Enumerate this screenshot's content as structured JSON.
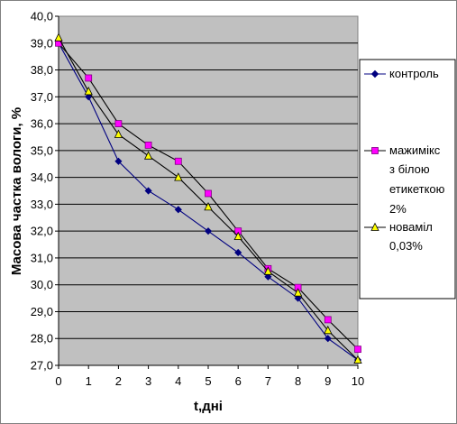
{
  "colors": {
    "plot_bg": "#c0c0c0",
    "frame_bg": "#ffffff",
    "grid": "#000000",
    "control": "#000080",
    "mazhimiks": "#ff00ff",
    "novamil": "#ffff00"
  },
  "chart_data": {
    "type": "line",
    "title": "",
    "xlabel": "t,дні",
    "ylabel": "Масова частка вологи, %",
    "x": [
      0,
      1,
      2,
      3,
      4,
      5,
      6,
      7,
      8,
      9,
      10
    ],
    "x_tick_labels": [
      "0",
      "1",
      "2",
      "3",
      "4",
      "5",
      "6",
      "7",
      "8",
      "9",
      "10"
    ],
    "ylim": [
      27.0,
      40.0
    ],
    "y_tick_labels": [
      "27,0",
      "28,0",
      "29,0",
      "30,0",
      "31,0",
      "32,0",
      "33,0",
      "34,0",
      "35,0",
      "36,0",
      "37,0",
      "38,0",
      "39,0",
      "40,0"
    ],
    "grid": true,
    "legend_position": "right",
    "series": [
      {
        "name": "контроль",
        "marker": "diamond",
        "values": [
          39.0,
          37.0,
          34.6,
          33.5,
          32.8,
          32.0,
          31.2,
          30.3,
          29.5,
          28.0,
          27.2
        ]
      },
      {
        "name": "мажимікс з білою етикеткою 2%",
        "marker": "square",
        "values": [
          39.0,
          37.7,
          36.0,
          35.2,
          34.6,
          33.4,
          32.0,
          30.6,
          29.9,
          28.7,
          27.6
        ]
      },
      {
        "name": "новамiл 0,03%",
        "marker": "triangle",
        "values": [
          39.2,
          37.2,
          35.6,
          34.8,
          34.0,
          32.9,
          31.8,
          30.5,
          29.7,
          28.3,
          27.2
        ]
      }
    ]
  },
  "legend": {
    "control_label": "контроль",
    "mazhimiks_label_lines": [
      "мажимікс",
      "з білою",
      "етикеткою",
      "2%"
    ],
    "novamil_label_lines": [
      "новамiл",
      "0,03%"
    ]
  }
}
